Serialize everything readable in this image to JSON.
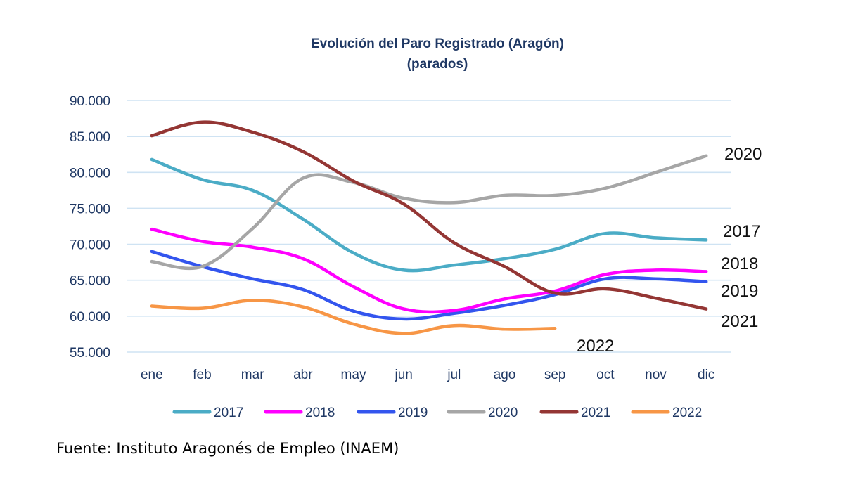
{
  "chart_data": {
    "type": "line",
    "title": "Evolución del Paro Registrado (Aragón)",
    "subtitle": "(parados)",
    "categories": [
      "ene",
      "feb",
      "mar",
      "abr",
      "may",
      "jun",
      "jul",
      "ago",
      "sep",
      "oct",
      "nov",
      "dic"
    ],
    "ylim": [
      55000,
      90000
    ],
    "yticks": [
      55000,
      60000,
      65000,
      70000,
      75000,
      80000,
      85000,
      90000
    ],
    "ytick_labels": [
      "55.000",
      "60.000",
      "65.000",
      "70.000",
      "75.000",
      "80.000",
      "85.000",
      "90.000"
    ],
    "grid": true,
    "legend_position": "bottom",
    "series": [
      {
        "name": "2017",
        "color": "#4bacc6",
        "end_label": "2017",
        "values": [
          81800,
          79000,
          77500,
          73500,
          68800,
          66400,
          67100,
          68000,
          69300,
          71500,
          70900,
          70600
        ]
      },
      {
        "name": "2018",
        "color": "#ff00ff",
        "end_label": "2018",
        "values": [
          72100,
          70400,
          69600,
          68000,
          64100,
          61000,
          60800,
          62400,
          63500,
          65800,
          66400,
          66200
        ]
      },
      {
        "name": "2019",
        "color": "#3355ee",
        "end_label": "2019",
        "values": [
          69000,
          66900,
          65200,
          63700,
          60700,
          59600,
          60400,
          61500,
          63000,
          65200,
          65200,
          64800
        ]
      },
      {
        "name": "2020",
        "color": "#a6a6a6",
        "end_label": "2020",
        "values": [
          67600,
          66900,
          72200,
          79200,
          78600,
          76400,
          75800,
          76800,
          76800,
          77800,
          80000,
          82300
        ]
      },
      {
        "name": "2021",
        "color": "#943634",
        "end_label": "2021",
        "values": [
          85100,
          87000,
          85600,
          82900,
          78800,
          75600,
          70200,
          66900,
          63200,
          63800,
          62500,
          61000
        ]
      },
      {
        "name": "2022",
        "color": "#f79646",
        "end_label": "2022",
        "values": [
          61400,
          61100,
          62200,
          61300,
          58900,
          57600,
          58700,
          58200,
          58300,
          null,
          null,
          null
        ]
      }
    ]
  },
  "source": "Fuente: Instituto Aragonés de Empleo (INAEM)"
}
